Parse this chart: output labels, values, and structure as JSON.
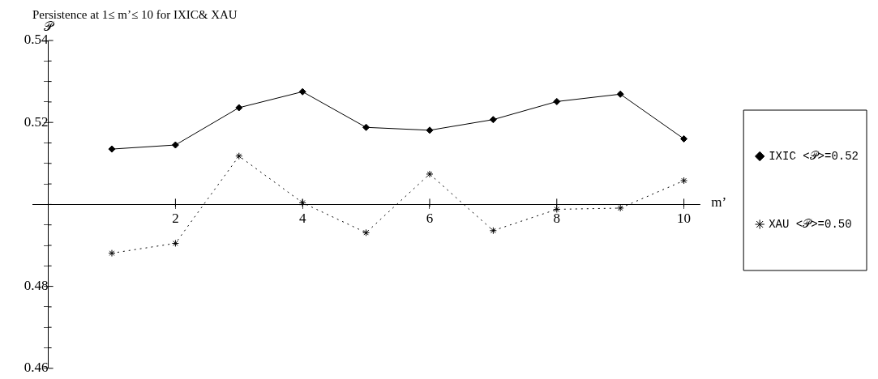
{
  "chart_data": {
    "type": "line",
    "title": "Persistence at 1≤ m’≤ 10 for IXIC& XAU",
    "xlabel": "m’",
    "ylabel": "𝒫",
    "x": [
      1,
      2,
      3,
      4,
      5,
      6,
      7,
      8,
      9,
      10
    ],
    "series": [
      {
        "name": "IXIC <𝒫>=0.52",
        "color": "#000000",
        "marker": "diamond",
        "line_style": "solid",
        "values": [
          0.5135,
          0.5145,
          0.5236,
          0.5275,
          0.5188,
          0.5181,
          0.5207,
          0.5251,
          0.5269,
          0.516
        ]
      },
      {
        "name": "XAU <𝒫>=0.50",
        "color": "#000000",
        "marker": "cross",
        "line_style": "dotted",
        "values": [
          0.4881,
          0.4905,
          0.5118,
          0.5004,
          0.4931,
          0.5074,
          0.4936,
          0.4988,
          0.4991,
          0.5058
        ]
      }
    ],
    "xlim": [
      -0.25,
      10.25
    ],
    "ylim": [
      0.46,
      0.54
    ],
    "xticks": [
      2,
      4,
      6,
      8,
      10
    ],
    "yticks": [
      {
        "value": 0.46,
        "label": "0.46"
      },
      {
        "value": 0.465,
        "label": null
      },
      {
        "value": 0.47,
        "label": null
      },
      {
        "value": 0.475,
        "label": null
      },
      {
        "value": 0.48,
        "label": "0.48"
      },
      {
        "value": 0.485,
        "label": null
      },
      {
        "value": 0.49,
        "label": null
      },
      {
        "value": 0.495,
        "label": null
      },
      {
        "value": 0.5,
        "label": null
      },
      {
        "value": 0.505,
        "label": null
      },
      {
        "value": 0.51,
        "label": null
      },
      {
        "value": 0.515,
        "label": null
      },
      {
        "value": 0.52,
        "label": "0.52"
      },
      {
        "value": 0.525,
        "label": null
      },
      {
        "value": 0.53,
        "label": null
      },
      {
        "value": 0.535,
        "label": null
      },
      {
        "value": 0.54,
        "label": "0.54"
      }
    ],
    "grid": false,
    "legend": "right"
  }
}
